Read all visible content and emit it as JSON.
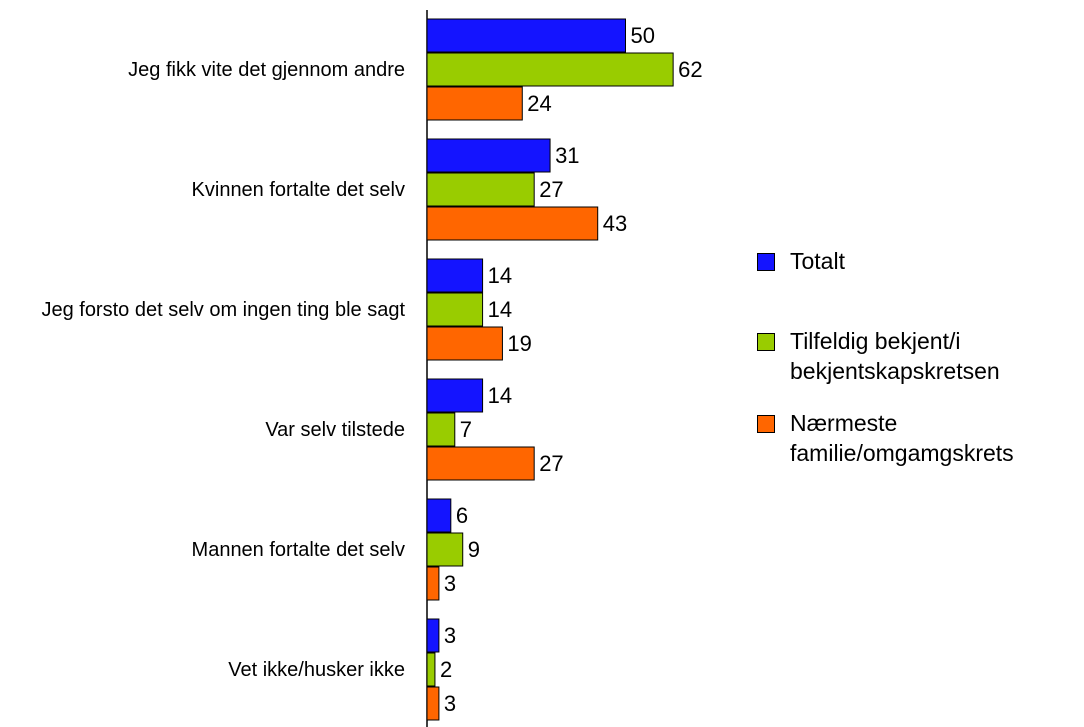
{
  "chart_data": {
    "type": "bar",
    "orientation": "horizontal",
    "categories": [
      "Jeg fikk vite det gjennom andre",
      "Kvinnen fortalte det selv",
      "Jeg forsto det selv om ingen ting ble sagt",
      "Var selv tilstede",
      "Mannen fortalte det selv",
      "Vet ikke/husker ikke"
    ],
    "series": [
      {
        "name": "Totalt",
        "color": "#1414ff",
        "values": [
          50,
          31,
          14,
          14,
          6,
          3
        ]
      },
      {
        "name": "Tilfeldig bekjent/i bekjentskapskretsen",
        "color": "#99cc00",
        "values": [
          62,
          27,
          14,
          7,
          9,
          2
        ]
      },
      {
        "name": "Nærmeste familie/omgamgskrets",
        "color": "#ff6600",
        "values": [
          24,
          43,
          19,
          27,
          3,
          3
        ]
      }
    ]
  }
}
